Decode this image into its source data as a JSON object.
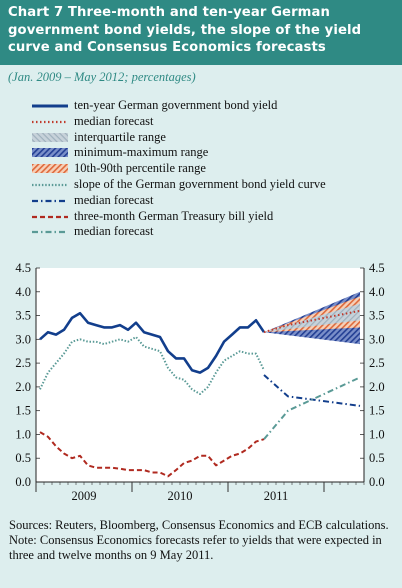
{
  "title": "Chart 7 Three-month and ten-year German government bond yields, the slope of the yield curve and Consensus Economics forecasts",
  "subtitle": "(Jan. 2009 – May 2012; percentages)",
  "legend": [
    {
      "label": "ten-year German government bond yield",
      "style": "solid",
      "color": "#123e8c"
    },
    {
      "label": "median forecast",
      "style": "dotted",
      "color": "#c0392b"
    },
    {
      "label": "interquartile range",
      "style": "band-grey",
      "color": "#a8b8c4"
    },
    {
      "label": "minimum-maximum range",
      "style": "hatch-blue",
      "color": "#3550a0"
    },
    {
      "label": "10th-90th percentile range",
      "style": "hatch-orange",
      "color": "#e07a50"
    },
    {
      "label": "slope of the German government bond yield curve",
      "style": "dotted-teal",
      "color": "#5a9a96"
    },
    {
      "label": "median forecast",
      "style": "dashdot-blue",
      "color": "#123e8c"
    },
    {
      "label": "three-month German Treasury bill yield",
      "style": "dashed-red",
      "color": "#b02a20"
    },
    {
      "label": "median forecast",
      "style": "dashdot-teal",
      "color": "#5a9a96"
    }
  ],
  "notes": {
    "sources": "Sources: Reuters, Bloomberg, Consensus Economics and ECB calculations.",
    "note": "Note: Consensus Economics forecasts refer to yields that were expected in three and twelve months on 9 May 2011."
  },
  "chart_data": {
    "type": "line",
    "xlabel": "",
    "ylabel": "",
    "x_tick_labels": [
      "2009",
      "2010",
      "2011"
    ],
    "x_range": [
      "2009-01",
      "2012-05"
    ],
    "ylim": [
      0,
      4.5
    ],
    "y_ticks": [
      "0.0",
      "0.5",
      "1.0",
      "1.5",
      "2.0",
      "2.5",
      "3.0",
      "3.5",
      "4.0",
      "4.5"
    ],
    "grid": false,
    "series": [
      {
        "name": "ten-year German government bond yield",
        "style": "solid",
        "color": "#123e8c",
        "x": [
          "2009-01",
          "2009-02",
          "2009-03",
          "2009-04",
          "2009-05",
          "2009-06",
          "2009-07",
          "2009-08",
          "2009-09",
          "2009-10",
          "2009-11",
          "2009-12",
          "2010-01",
          "2010-02",
          "2010-03",
          "2010-04",
          "2010-05",
          "2010-06",
          "2010-07",
          "2010-08",
          "2010-09",
          "2010-10",
          "2010-11",
          "2010-12",
          "2011-01",
          "2011-02",
          "2011-03",
          "2011-04",
          "2011-05"
        ],
        "values": [
          3.0,
          3.15,
          3.1,
          3.2,
          3.45,
          3.55,
          3.35,
          3.3,
          3.25,
          3.25,
          3.3,
          3.2,
          3.35,
          3.15,
          3.1,
          3.05,
          2.75,
          2.6,
          2.6,
          2.35,
          2.3,
          2.4,
          2.65,
          2.95,
          3.1,
          3.25,
          3.25,
          3.4,
          3.15
        ]
      },
      {
        "name": "slope of the German government bond yield curve",
        "style": "dotted-teal",
        "color": "#5a9a96",
        "x": [
          "2009-01",
          "2009-02",
          "2009-03",
          "2009-04",
          "2009-05",
          "2009-06",
          "2009-07",
          "2009-08",
          "2009-09",
          "2009-10",
          "2009-11",
          "2009-12",
          "2010-01",
          "2010-02",
          "2010-03",
          "2010-04",
          "2010-05",
          "2010-06",
          "2010-07",
          "2010-08",
          "2010-09",
          "2010-10",
          "2010-11",
          "2010-12",
          "2011-01",
          "2011-02",
          "2011-03",
          "2011-04",
          "2011-05"
        ],
        "values": [
          1.95,
          2.3,
          2.5,
          2.7,
          2.95,
          3.0,
          2.95,
          2.95,
          2.9,
          2.95,
          3.0,
          2.95,
          3.05,
          2.85,
          2.8,
          2.75,
          2.4,
          2.2,
          2.15,
          1.95,
          1.85,
          2.0,
          2.3,
          2.55,
          2.65,
          2.75,
          2.7,
          2.7,
          2.35
        ]
      },
      {
        "name": "three-month German Treasury bill yield",
        "style": "dashed-red",
        "color": "#b02a20",
        "x": [
          "2009-01",
          "2009-02",
          "2009-03",
          "2009-04",
          "2009-05",
          "2009-06",
          "2009-07",
          "2009-08",
          "2009-09",
          "2009-10",
          "2009-11",
          "2009-12",
          "2010-01",
          "2010-02",
          "2010-03",
          "2010-04",
          "2010-05",
          "2010-06",
          "2010-07",
          "2010-08",
          "2010-09",
          "2010-10",
          "2010-11",
          "2010-12",
          "2011-01",
          "2011-02",
          "2011-03",
          "2011-04",
          "2011-05"
        ],
        "values": [
          1.05,
          0.95,
          0.75,
          0.6,
          0.5,
          0.55,
          0.35,
          0.3,
          0.3,
          0.3,
          0.28,
          0.25,
          0.25,
          0.25,
          0.2,
          0.2,
          0.12,
          0.25,
          0.4,
          0.45,
          0.55,
          0.55,
          0.35,
          0.45,
          0.55,
          0.6,
          0.7,
          0.85,
          0.9
        ]
      },
      {
        "name": "median forecast (ten-year yield)",
        "style": "dotted",
        "color": "#c0392b",
        "x": [
          "2011-05",
          "2011-08",
          "2012-05"
        ],
        "values": [
          3.15,
          3.3,
          3.6
        ]
      },
      {
        "name": "median forecast (slope)",
        "style": "dashdot-blue",
        "color": "#123e8c",
        "x": [
          "2011-05",
          "2011-08",
          "2012-05"
        ],
        "values": [
          2.25,
          1.8,
          1.6
        ]
      },
      {
        "name": "median forecast (three-month yield)",
        "style": "dashdot-teal",
        "color": "#5a9a96",
        "x": [
          "2011-05",
          "2011-08",
          "2012-05"
        ],
        "values": [
          0.9,
          1.5,
          2.2
        ]
      }
    ],
    "ranges": [
      {
        "name": "minimum-maximum range",
        "x": [
          "2011-05",
          "2012-05"
        ],
        "low": [
          3.15,
          2.9
        ],
        "high": [
          3.15,
          4.0
        ]
      },
      {
        "name": "10th-90th percentile range",
        "x": [
          "2011-05",
          "2012-05"
        ],
        "low": [
          3.15,
          3.25
        ],
        "high": [
          3.15,
          3.9
        ]
      },
      {
        "name": "interquartile range",
        "x": [
          "2011-05",
          "2012-05"
        ],
        "low": [
          3.15,
          3.4
        ],
        "high": [
          3.15,
          3.75
        ]
      }
    ]
  }
}
